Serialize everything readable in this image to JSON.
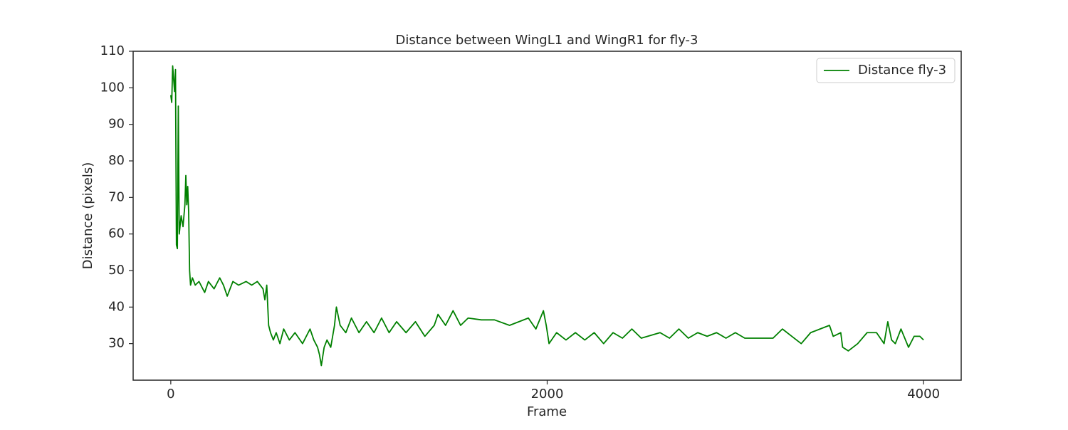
{
  "chart_data": {
    "type": "line",
    "title": "Distance between WingL1 and WingR1 for fly-3",
    "x_label": "Frame",
    "y_label": "Distance (pixels)",
    "xlim": [
      -200,
      4200
    ],
    "xticks": [
      0,
      2000,
      4000
    ],
    "ylim": [
      20,
      110
    ],
    "yticks": [
      30,
      40,
      50,
      60,
      70,
      80,
      90,
      100,
      110
    ],
    "legend": "upper right",
    "grid": false,
    "x": [
      0,
      5,
      10,
      20,
      25,
      30,
      35,
      40,
      45,
      55,
      65,
      75,
      80,
      85,
      90,
      95,
      100,
      105,
      115,
      130,
      150,
      180,
      200,
      230,
      260,
      280,
      300,
      330,
      360,
      400,
      430,
      460,
      490,
      500,
      510,
      520,
      530,
      545,
      560,
      580,
      600,
      630,
      660,
      700,
      740,
      760,
      780,
      790,
      800,
      815,
      830,
      850,
      870,
      880,
      900,
      930,
      960,
      1000,
      1040,
      1080,
      1120,
      1160,
      1200,
      1250,
      1300,
      1350,
      1400,
      1420,
      1460,
      1500,
      1540,
      1580,
      1650,
      1720,
      1800,
      1850,
      1900,
      1940,
      1980,
      1995,
      2010,
      2050,
      2100,
      2150,
      2200,
      2250,
      2300,
      2350,
      2400,
      2450,
      2500,
      2600,
      2650,
      2700,
      2750,
      2800,
      2850,
      2900,
      2950,
      3000,
      3050,
      3100,
      3200,
      3250,
      3300,
      3350,
      3400,
      3450,
      3500,
      3520,
      3560,
      3570,
      3600,
      3650,
      3700,
      3750,
      3790,
      3810,
      3830,
      3850,
      3880,
      3920,
      3950,
      3980,
      4000
    ],
    "series": [
      {
        "name": "Distance fly-3",
        "color": "#008000",
        "values": [
          98,
          96,
          106,
          99,
          105,
          57,
          56,
          95,
          60,
          65,
          62,
          68,
          76,
          68,
          73,
          66,
          50,
          46,
          48,
          46,
          47,
          44,
          47,
          45,
          48,
          46,
          43,
          47,
          46,
          47,
          46,
          47,
          45,
          42,
          46,
          35,
          33,
          31,
          33,
          30,
          34,
          31,
          33,
          30,
          34,
          31,
          29,
          27,
          24,
          29,
          31,
          29,
          35,
          40,
          35,
          33,
          37,
          33,
          36,
          33,
          37,
          33,
          36,
          33,
          36,
          32,
          35,
          38,
          35,
          39,
          35,
          37,
          36.5,
          36.5,
          35,
          36,
          37,
          34,
          39,
          35,
          30,
          33,
          31,
          33,
          31,
          33,
          30,
          33,
          31.5,
          34,
          31.5,
          33,
          31.5,
          34,
          31.5,
          33,
          32,
          33,
          31.5,
          33,
          31.5,
          31.5,
          31.5,
          34,
          32,
          30,
          33,
          34,
          35,
          32,
          33,
          29,
          28,
          30,
          33,
          33,
          30,
          36,
          31,
          30,
          34,
          29,
          32,
          32,
          31
        ]
      }
    ]
  }
}
